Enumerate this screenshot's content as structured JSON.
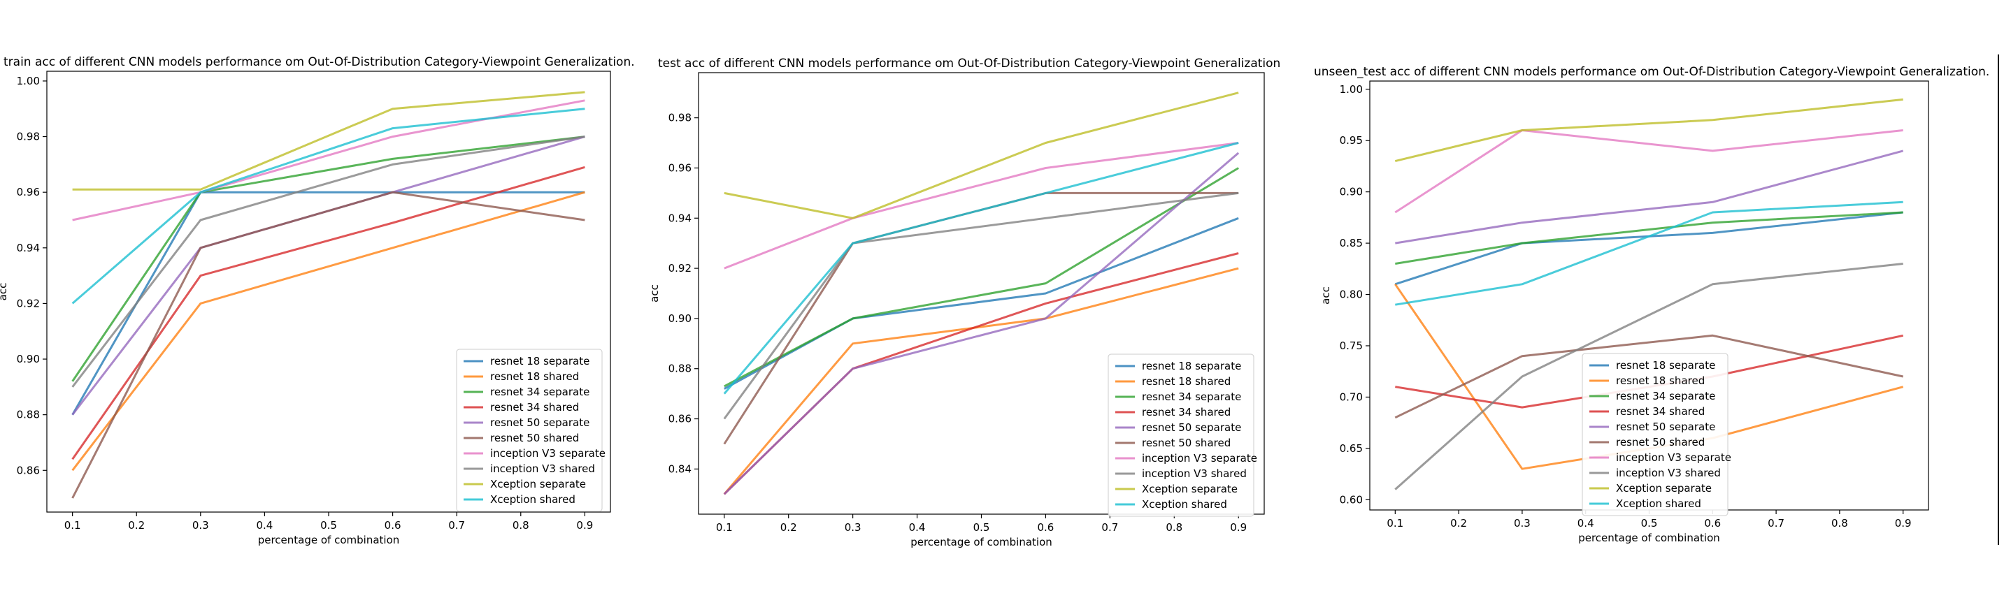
{
  "colors": {
    "resnet 18 separate": "#1f77b4",
    "resnet 18 shared": "#ff7f0e",
    "resnet 34 separate": "#2ca02c",
    "resnet 34 shared": "#d62728",
    "resnet 50 separate": "#9467bd",
    "resnet 50 shared": "#8c564b",
    "inception V3 separate": "#e377c2",
    "inception V3 shared": "#7f7f7f",
    "Xception separate": "#bcbd22",
    "Xception shared": "#17becf"
  },
  "chart_data": [
    {
      "type": "line",
      "title": "train acc of different CNN models performance om Out-Of-Distribution Category-Viewpoint Generalization.",
      "xlabel": "percentage of combination",
      "ylabel": "acc",
      "x": [
        0.1,
        0.3,
        0.6,
        0.9
      ],
      "xlim": [
        0.06,
        0.94
      ],
      "ylim": [
        0.845,
        1.0035
      ],
      "xticks": [
        "0.1",
        "0.2",
        "0.3",
        "0.4",
        "0.5",
        "0.6",
        "0.7",
        "0.8",
        "0.9"
      ],
      "yticks": [
        "0.86",
        "0.88",
        "0.90",
        "0.92",
        "0.94",
        "0.96",
        "0.98",
        "1.00"
      ],
      "legend": "lower right",
      "series": [
        {
          "name": "resnet 18 separate",
          "values": [
            0.88,
            0.96,
            0.96,
            0.96
          ]
        },
        {
          "name": "resnet 18 shared",
          "values": [
            0.86,
            0.92,
            0.94,
            0.96
          ]
        },
        {
          "name": "resnet 34 separate",
          "values": [
            0.892,
            0.96,
            0.972,
            0.98
          ]
        },
        {
          "name": "resnet 34 shared",
          "values": [
            0.864,
            0.93,
            0.949,
            0.969
          ]
        },
        {
          "name": "resnet 50 separate",
          "values": [
            0.88,
            0.94,
            0.96,
            0.98
          ]
        },
        {
          "name": "resnet 50 shared",
          "values": [
            0.85,
            0.94,
            0.96,
            0.95
          ]
        },
        {
          "name": "inception V3 separate",
          "values": [
            0.95,
            0.96,
            0.98,
            0.993
          ]
        },
        {
          "name": "inception V3 shared",
          "values": [
            0.89,
            0.95,
            0.97,
            0.98
          ]
        },
        {
          "name": "Xception separate",
          "values": [
            0.961,
            0.961,
            0.99,
            0.996
          ]
        },
        {
          "name": "Xception shared",
          "values": [
            0.92,
            0.96,
            0.983,
            0.99
          ]
        }
      ]
    },
    {
      "type": "line",
      "title": "test acc of different CNN models performance om Out-Of-Distribution Category-Viewpoint Generalization",
      "xlabel": "percentage of combination",
      "ylabel": "acc",
      "x": [
        0.1,
        0.3,
        0.6,
        0.9
      ],
      "xlim": [
        0.06,
        0.94
      ],
      "ylim": [
        0.822,
        0.998
      ],
      "xticks": [
        "0.1",
        "0.2",
        "0.3",
        "0.4",
        "0.5",
        "0.6",
        "0.7",
        "0.8",
        "0.9"
      ],
      "yticks": [
        "0.84",
        "0.86",
        "0.88",
        "0.90",
        "0.92",
        "0.94",
        "0.96",
        "0.98"
      ],
      "legend": "lower right",
      "series": [
        {
          "name": "resnet 18 separate",
          "values": [
            0.872,
            0.9,
            0.91,
            0.94
          ]
        },
        {
          "name": "resnet 18 shared",
          "values": [
            0.83,
            0.89,
            0.9,
            0.92
          ]
        },
        {
          "name": "resnet 34 separate",
          "values": [
            0.873,
            0.9,
            0.914,
            0.96
          ]
        },
        {
          "name": "resnet 34 shared",
          "values": [
            0.83,
            0.88,
            0.906,
            0.926
          ]
        },
        {
          "name": "resnet 50 separate",
          "values": [
            0.83,
            0.88,
            0.9,
            0.966
          ]
        },
        {
          "name": "resnet 50 shared",
          "values": [
            0.85,
            0.93,
            0.95,
            0.95
          ]
        },
        {
          "name": "inception V3 separate",
          "values": [
            0.92,
            0.94,
            0.96,
            0.97
          ]
        },
        {
          "name": "inception V3 shared",
          "values": [
            0.86,
            0.93,
            0.94,
            0.95
          ]
        },
        {
          "name": "Xception separate",
          "values": [
            0.95,
            0.94,
            0.97,
            0.99
          ]
        },
        {
          "name": "Xception shared",
          "values": [
            0.87,
            0.93,
            0.95,
            0.97
          ]
        }
      ]
    },
    {
      "type": "line",
      "title": "unseen_test acc of different CNN models performance om Out-Of-Distribution Category-Viewpoint Generalization.",
      "xlabel": "percentage of combination",
      "ylabel": "acc",
      "x": [
        0.1,
        0.3,
        0.6,
        0.9
      ],
      "xlim": [
        0.06,
        0.94
      ],
      "ylim": [
        0.59,
        1.008
      ],
      "xticks": [
        "0.1",
        "0.2",
        "0.3",
        "0.4",
        "0.5",
        "0.6",
        "0.7",
        "0.8",
        "0.9"
      ],
      "yticks": [
        "0.60",
        "0.65",
        "0.70",
        "0.75",
        "0.80",
        "0.85",
        "0.90",
        "0.95",
        "1.00"
      ],
      "legend": "lower left",
      "series": [
        {
          "name": "resnet 18 separate",
          "values": [
            0.81,
            0.85,
            0.86,
            0.88
          ]
        },
        {
          "name": "resnet 18 shared",
          "values": [
            0.81,
            0.63,
            0.66,
            0.71
          ]
        },
        {
          "name": "resnet 34 separate",
          "values": [
            0.83,
            0.85,
            0.87,
            0.88
          ]
        },
        {
          "name": "resnet 34 shared",
          "values": [
            0.71,
            0.69,
            0.72,
            0.76
          ]
        },
        {
          "name": "resnet 50 separate",
          "values": [
            0.85,
            0.87,
            0.89,
            0.94
          ]
        },
        {
          "name": "resnet 50 shared",
          "values": [
            0.68,
            0.74,
            0.76,
            0.72
          ]
        },
        {
          "name": "inception V3 separate",
          "values": [
            0.88,
            0.96,
            0.94,
            0.96
          ]
        },
        {
          "name": "inception V3 shared",
          "values": [
            0.61,
            0.72,
            0.81,
            0.83
          ]
        },
        {
          "name": "Xception separate",
          "values": [
            0.93,
            0.96,
            0.97,
            0.99
          ]
        },
        {
          "name": "Xception shared",
          "values": [
            0.79,
            0.81,
            0.88,
            0.89
          ]
        }
      ]
    }
  ]
}
